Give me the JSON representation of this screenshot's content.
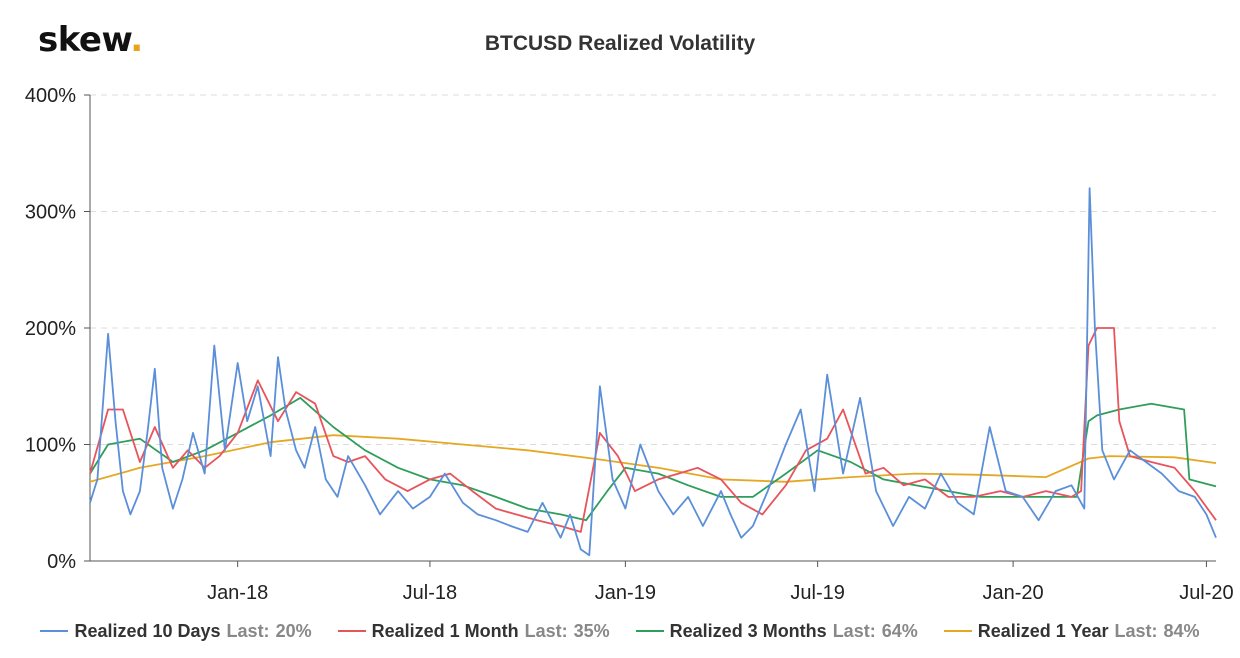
{
  "logo": {
    "text": "skew",
    "dot": "."
  },
  "chart_data": {
    "type": "line",
    "title": "BTCUSD Realized Volatility",
    "xlabel": "",
    "ylabel": "",
    "ylim": [
      0,
      400
    ],
    "y_ticks": [
      "0%",
      "100%",
      "200%",
      "300%",
      "400%"
    ],
    "x_range": [
      "2017-08-15",
      "2020-07-10"
    ],
    "x_ticks": [
      {
        "label": "Jan-18",
        "date": "2018-01-01"
      },
      {
        "label": "Jul-18",
        "date": "2018-07-01"
      },
      {
        "label": "Jan-19",
        "date": "2019-01-01"
      },
      {
        "label": "Jul-19",
        "date": "2019-07-01"
      },
      {
        "label": "Jan-20",
        "date": "2020-01-01"
      },
      {
        "label": "Jul-20",
        "date": "2020-07-01"
      }
    ],
    "grid": true,
    "legend_position": "bottom",
    "series": [
      {
        "name": "Realized 10 Days",
        "last_label": "Last:",
        "last_value": "20%",
        "color": "#5b8fd9",
        "x": [
          "2017-08-15",
          "2017-08-22",
          "2017-09-01",
          "2017-09-08",
          "2017-09-15",
          "2017-09-22",
          "2017-10-01",
          "2017-10-08",
          "2017-10-15",
          "2017-10-22",
          "2017-11-01",
          "2017-11-10",
          "2017-11-20",
          "2017-12-01",
          "2017-12-10",
          "2017-12-20",
          "2018-01-01",
          "2018-01-10",
          "2018-01-20",
          "2018-02-01",
          "2018-02-08",
          "2018-02-15",
          "2018-02-25",
          "2018-03-05",
          "2018-03-15",
          "2018-03-25",
          "2018-04-05",
          "2018-04-15",
          "2018-05-01",
          "2018-05-15",
          "2018-06-01",
          "2018-06-15",
          "2018-07-01",
          "2018-07-15",
          "2018-08-01",
          "2018-08-15",
          "2018-09-01",
          "2018-09-15",
          "2018-10-01",
          "2018-10-15",
          "2018-11-01",
          "2018-11-10",
          "2018-11-20",
          "2018-11-28",
          "2018-12-08",
          "2018-12-20",
          "2019-01-01",
          "2019-01-15",
          "2019-02-01",
          "2019-02-15",
          "2019-03-01",
          "2019-03-15",
          "2019-04-01",
          "2019-04-10",
          "2019-04-20",
          "2019-05-01",
          "2019-05-15",
          "2019-06-01",
          "2019-06-15",
          "2019-06-28",
          "2019-07-10",
          "2019-07-25",
          "2019-08-10",
          "2019-08-25",
          "2019-09-10",
          "2019-09-25",
          "2019-10-10",
          "2019-10-25",
          "2019-11-10",
          "2019-11-25",
          "2019-12-10",
          "2019-12-25",
          "2020-01-10",
          "2020-01-25",
          "2020-02-10",
          "2020-02-25",
          "2020-03-08",
          "2020-03-13",
          "2020-03-18",
          "2020-03-25",
          "2020-04-05",
          "2020-04-20",
          "2020-05-05",
          "2020-05-20",
          "2020-06-05",
          "2020-06-20",
          "2020-07-01",
          "2020-07-10"
        ],
        "values": [
          50,
          70,
          195,
          120,
          60,
          40,
          60,
          110,
          165,
          80,
          45,
          70,
          110,
          75,
          185,
          95,
          170,
          120,
          150,
          90,
          175,
          130,
          95,
          80,
          115,
          70,
          55,
          90,
          65,
          40,
          60,
          45,
          55,
          75,
          50,
          40,
          35,
          30,
          25,
          50,
          20,
          40,
          10,
          5,
          150,
          70,
          45,
          100,
          60,
          40,
          55,
          30,
          60,
          40,
          20,
          30,
          60,
          100,
          130,
          60,
          160,
          75,
          140,
          60,
          30,
          55,
          45,
          75,
          50,
          40,
          115,
          60,
          55,
          35,
          60,
          65,
          45,
          320,
          200,
          95,
          70,
          95,
          85,
          75,
          60,
          55,
          40,
          20
        ]
      },
      {
        "name": "Realized 1 Month",
        "last_label": "Last:",
        "last_value": "35%",
        "color": "#e8545b",
        "x": [
          "2017-08-15",
          "2017-09-01",
          "2017-09-15",
          "2017-10-01",
          "2017-10-15",
          "2017-11-01",
          "2017-11-15",
          "2017-12-01",
          "2017-12-15",
          "2018-01-01",
          "2018-01-20",
          "2018-02-08",
          "2018-02-25",
          "2018-03-15",
          "2018-04-01",
          "2018-04-15",
          "2018-05-01",
          "2018-05-20",
          "2018-06-10",
          "2018-07-01",
          "2018-07-20",
          "2018-08-10",
          "2018-09-01",
          "2018-09-20",
          "2018-10-10",
          "2018-11-01",
          "2018-11-20",
          "2018-12-08",
          "2018-12-25",
          "2019-01-10",
          "2019-02-01",
          "2019-02-20",
          "2019-03-10",
          "2019-04-01",
          "2019-04-20",
          "2019-05-10",
          "2019-06-01",
          "2019-06-20",
          "2019-07-10",
          "2019-07-25",
          "2019-08-15",
          "2019-09-01",
          "2019-09-20",
          "2019-10-10",
          "2019-11-01",
          "2019-11-25",
          "2019-12-20",
          "2020-01-10",
          "2020-02-01",
          "2020-02-25",
          "2020-03-05",
          "2020-03-12",
          "2020-03-20",
          "2020-04-05",
          "2020-04-10",
          "2020-04-20",
          "2020-05-10",
          "2020-06-01",
          "2020-06-20",
          "2020-07-10"
        ],
        "values": [
          75,
          130,
          130,
          85,
          115,
          80,
          95,
          80,
          90,
          110,
          155,
          120,
          145,
          135,
          90,
          85,
          90,
          70,
          60,
          70,
          75,
          60,
          45,
          40,
          35,
          30,
          25,
          110,
          90,
          60,
          70,
          75,
          80,
          70,
          50,
          40,
          65,
          95,
          105,
          130,
          75,
          80,
          65,
          70,
          55,
          55,
          60,
          55,
          60,
          55,
          60,
          185,
          200,
          200,
          120,
          90,
          85,
          80,
          60,
          35
        ]
      },
      {
        "name": "Realized 3 Months",
        "last_label": "Last:",
        "last_value": "64%",
        "color": "#2e9e5b",
        "x": [
          "2017-08-15",
          "2017-09-01",
          "2017-10-01",
          "2017-11-01",
          "2017-12-01",
          "2018-01-01",
          "2018-02-01",
          "2018-03-01",
          "2018-04-01",
          "2018-05-01",
          "2018-06-01",
          "2018-07-01",
          "2018-08-01",
          "2018-09-01",
          "2018-10-01",
          "2018-11-01",
          "2018-11-25",
          "2018-12-15",
          "2019-01-01",
          "2019-02-01",
          "2019-03-01",
          "2019-04-01",
          "2019-05-01",
          "2019-06-01",
          "2019-07-01",
          "2019-08-01",
          "2019-09-01",
          "2019-10-01",
          "2019-11-01",
          "2019-12-01",
          "2020-01-01",
          "2020-02-01",
          "2020-03-01",
          "2020-03-12",
          "2020-03-20",
          "2020-04-10",
          "2020-05-10",
          "2020-06-10",
          "2020-06-15",
          "2020-07-10"
        ],
        "values": [
          75,
          100,
          105,
          85,
          95,
          110,
          125,
          140,
          115,
          95,
          80,
          70,
          65,
          55,
          45,
          40,
          35,
          60,
          80,
          75,
          65,
          55,
          55,
          75,
          95,
          85,
          70,
          65,
          60,
          55,
          55,
          55,
          55,
          120,
          125,
          130,
          135,
          130,
          70,
          64
        ]
      },
      {
        "name": "Realized 1 Year",
        "last_label": "Last:",
        "last_value": "84%",
        "color": "#e5a823",
        "x": [
          "2017-08-15",
          "2017-10-01",
          "2017-12-01",
          "2018-02-01",
          "2018-04-01",
          "2018-06-01",
          "2018-08-01",
          "2018-10-01",
          "2018-12-01",
          "2019-02-01",
          "2019-04-01",
          "2019-06-01",
          "2019-08-01",
          "2019-10-01",
          "2019-12-01",
          "2020-02-01",
          "2020-03-12",
          "2020-04-01",
          "2020-06-01",
          "2020-07-10"
        ],
        "values": [
          68,
          80,
          90,
          102,
          108,
          105,
          100,
          95,
          88,
          80,
          70,
          68,
          72,
          75,
          74,
          72,
          88,
          90,
          89,
          84
        ]
      }
    ]
  }
}
